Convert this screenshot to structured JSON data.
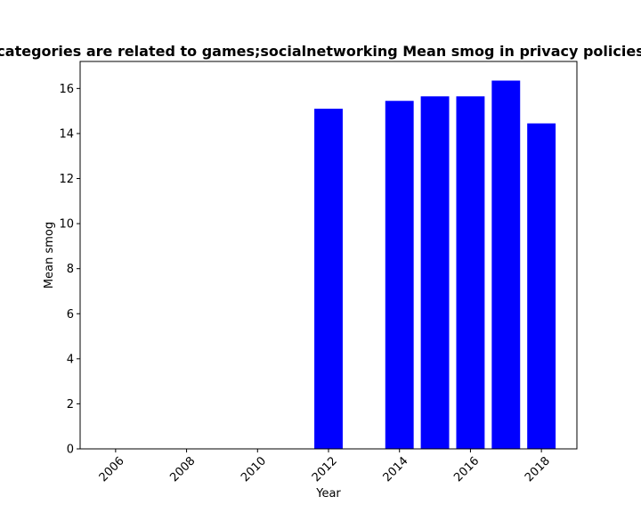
{
  "chart_data": {
    "type": "bar",
    "title": "categories are related to games;socialnetworking Mean smog in privacy policies",
    "xlabel": "Year",
    "ylabel": "Mean smog",
    "x": [
      2012,
      2014,
      2015,
      2016,
      2017,
      2018
    ],
    "values": [
      15.1,
      15.45,
      15.65,
      15.65,
      16.35,
      14.45
    ],
    "xlim": [
      2005,
      2019
    ],
    "ylim": [
      0,
      17.2
    ],
    "xticks": [
      2006,
      2008,
      2010,
      2012,
      2014,
      2016,
      2018
    ],
    "yticks": [
      0,
      2,
      4,
      6,
      8,
      10,
      12,
      14,
      16
    ],
    "bar_color": "#0000ff",
    "grid": false
  }
}
